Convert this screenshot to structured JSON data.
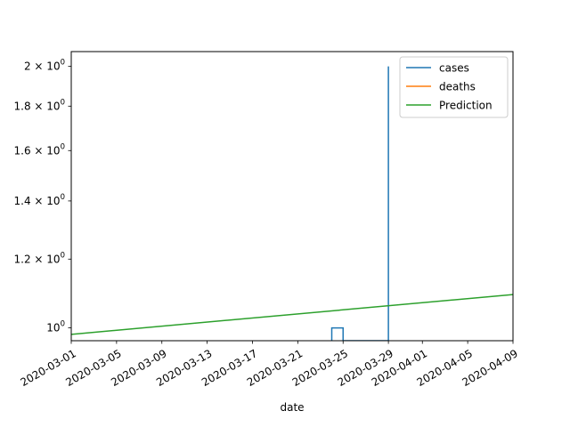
{
  "chart_data": {
    "type": "line",
    "title": "",
    "xlabel": "date",
    "ylabel": "",
    "yscale": "log",
    "x_range": [
      "2020-03-01",
      "2020-04-09"
    ],
    "ylim": [
      0.9666,
      2.08
    ],
    "grid": false,
    "legend_position": "top-right",
    "x_ticks": [
      {
        "date": "2020-03-01",
        "label": "2020-03-01"
      },
      {
        "date": "2020-03-05",
        "label": "2020-03-05"
      },
      {
        "date": "2020-03-09",
        "label": "2020-03-09"
      },
      {
        "date": "2020-03-13",
        "label": "2020-03-13"
      },
      {
        "date": "2020-03-17",
        "label": "2020-03-17"
      },
      {
        "date": "2020-03-21",
        "label": "2020-03-21"
      },
      {
        "date": "2020-03-25",
        "label": "2020-03-25"
      },
      {
        "date": "2020-03-29",
        "label": "2020-03-29"
      },
      {
        "date": "2020-04-01",
        "label": "2020-04-01"
      },
      {
        "date": "2020-04-05",
        "label": "2020-04-05"
      },
      {
        "date": "2020-04-09",
        "label": "2020-04-09"
      }
    ],
    "y_ticks": [
      {
        "value": 1.0,
        "base": "10",
        "exp": "0"
      },
      {
        "value": 1.2,
        "base": "1.2 × 10",
        "exp": "0"
      },
      {
        "value": 1.4,
        "base": "1.4 × 10",
        "exp": "0"
      },
      {
        "value": 1.6,
        "base": "1.6 × 10",
        "exp": "0"
      },
      {
        "value": 1.8,
        "base": "1.8 × 10",
        "exp": "0"
      },
      {
        "value": 2.0,
        "base": "2 × 10",
        "exp": "0"
      }
    ],
    "series": [
      {
        "name": "cases",
        "color": "#1f77b4",
        "step": true,
        "points": [
          {
            "x": "2020-03-24",
            "y": 0.5
          },
          {
            "x": "2020-03-24",
            "y": 1
          },
          {
            "x": "2020-03-25",
            "y": 1
          },
          {
            "x": "2020-03-25",
            "y": 0.5
          },
          {
            "x": "2020-03-29",
            "y": 0.5
          },
          {
            "x": "2020-03-29",
            "y": 2
          },
          {
            "x": "2020-03-29",
            "y": 0.5
          }
        ]
      },
      {
        "name": "deaths",
        "color": "#ff7f0e",
        "points": []
      },
      {
        "name": "Prediction",
        "color": "#2ca02c",
        "points": [
          {
            "x": "2020-03-01",
            "y": 0.983
          },
          {
            "x": "2020-04-09",
            "y": 1.0925
          }
        ]
      }
    ]
  }
}
